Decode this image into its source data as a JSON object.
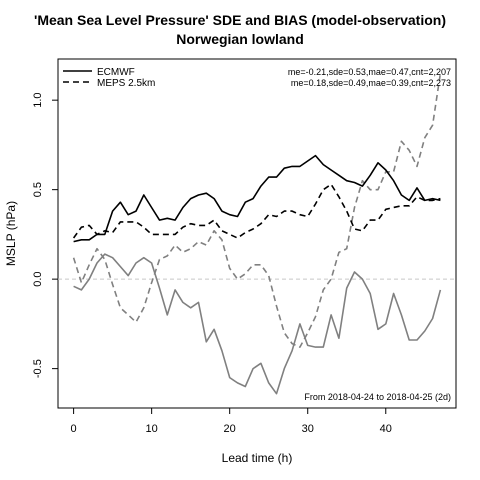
{
  "chart_data": {
    "type": "line",
    "title": "'Mean Sea Level Pressure' SDE and BIAS (model-observation)",
    "subtitle": "Norwegian lowland",
    "xlabel": "Lead time (h)",
    "ylabel": "MSLP (hPa)",
    "xlim": [
      -2,
      49
    ],
    "ylim": [
      -0.72,
      1.23
    ],
    "x_ticks": [
      0,
      10,
      20,
      30,
      40
    ],
    "y_ticks": [
      -0.5,
      0.0,
      0.5,
      1.0
    ],
    "x_tick_labels": [
      "0",
      "10",
      "20",
      "30",
      "40"
    ],
    "y_tick_labels": [
      "-0.5",
      "0.0",
      "0.5",
      "1.0"
    ],
    "zero_line": true,
    "grid": false,
    "legend_position": "top-left",
    "legend": [
      {
        "name": "ECMWF",
        "dash": "solid"
      },
      {
        "name": "MEPS 2.5km",
        "dash": "dashed"
      }
    ],
    "stats_text": [
      "me=-0.21,sde=0.53,mae=0.47,cnt=2,207",
      "me=0.18,sde=0.49,mae=0.39,cnt=2,273"
    ],
    "footnote": "From 2018-04-24 to 2018-04-25 (2d)",
    "x": [
      0,
      1,
      2,
      3,
      4,
      5,
      6,
      7,
      8,
      9,
      10,
      11,
      12,
      13,
      14,
      15,
      16,
      17,
      18,
      19,
      20,
      21,
      22,
      23,
      24,
      25,
      26,
      27,
      28,
      29,
      30,
      31,
      32,
      33,
      34,
      35,
      36,
      37,
      38,
      39,
      40,
      41,
      42,
      43,
      44,
      45,
      46,
      47
    ],
    "series": [
      {
        "name": "ECMWF",
        "metric": "SDE",
        "color": "#000000",
        "dash": "solid",
        "values": [
          0.21,
          0.22,
          0.22,
          0.25,
          0.25,
          0.38,
          0.43,
          0.36,
          0.38,
          0.47,
          0.4,
          0.33,
          0.34,
          0.33,
          0.4,
          0.45,
          0.47,
          0.48,
          0.45,
          0.38,
          0.36,
          0.35,
          0.43,
          0.45,
          0.52,
          0.57,
          0.57,
          0.62,
          0.63,
          0.63,
          0.66,
          0.69,
          0.64,
          0.61,
          0.58,
          0.55,
          0.54,
          0.52,
          0.58,
          0.65,
          0.61,
          0.55,
          0.47,
          0.44,
          0.51,
          0.44,
          0.45,
          0.44
        ]
      },
      {
        "name": "ECMWF",
        "metric": "BIAS",
        "color": "#808080",
        "dash": "solid",
        "values": [
          -0.04,
          -0.06,
          0.0,
          0.09,
          0.14,
          0.12,
          0.07,
          0.02,
          0.09,
          0.12,
          0.09,
          -0.05,
          -0.2,
          -0.06,
          -0.13,
          -0.16,
          -0.13,
          -0.35,
          -0.28,
          -0.4,
          -0.55,
          -0.58,
          -0.6,
          -0.5,
          -0.47,
          -0.58,
          -0.64,
          -0.5,
          -0.4,
          -0.25,
          -0.37,
          -0.38,
          -0.38,
          -0.2,
          -0.33,
          -0.05,
          0.04,
          0.0,
          -0.08,
          -0.28,
          -0.25,
          -0.08,
          -0.2,
          -0.34,
          -0.34,
          -0.29,
          -0.22,
          -0.06
        ]
      },
      {
        "name": "MEPS 2.5km",
        "metric": "SDE",
        "color": "#000000",
        "dash": "dashed",
        "values": [
          0.23,
          0.29,
          0.3,
          0.25,
          0.27,
          0.26,
          0.32,
          0.32,
          0.32,
          0.29,
          0.25,
          0.25,
          0.25,
          0.25,
          0.29,
          0.31,
          0.3,
          0.3,
          0.33,
          0.27,
          0.25,
          0.23,
          0.26,
          0.28,
          0.31,
          0.36,
          0.35,
          0.38,
          0.38,
          0.36,
          0.35,
          0.42,
          0.5,
          0.53,
          0.46,
          0.38,
          0.28,
          0.27,
          0.33,
          0.33,
          0.39,
          0.4,
          0.41,
          0.41,
          0.46,
          0.44,
          0.44,
          0.45
        ]
      },
      {
        "name": "MEPS 2.5km",
        "metric": "BIAS",
        "color": "#808080",
        "dash": "dashed",
        "values": [
          0.12,
          -0.02,
          0.08,
          0.17,
          0.11,
          -0.03,
          -0.16,
          -0.2,
          -0.24,
          -0.16,
          -0.02,
          0.11,
          0.13,
          0.19,
          0.15,
          0.17,
          0.21,
          0.19,
          0.27,
          0.22,
          0.06,
          0.0,
          0.03,
          0.08,
          0.08,
          0.02,
          -0.15,
          -0.3,
          -0.36,
          -0.38,
          -0.3,
          -0.21,
          -0.06,
          0.0,
          0.15,
          0.17,
          0.4,
          0.55,
          0.5,
          0.5,
          0.6,
          0.6,
          0.77,
          0.72,
          0.63,
          0.79,
          0.86,
          1.15
        ]
      }
    ]
  }
}
